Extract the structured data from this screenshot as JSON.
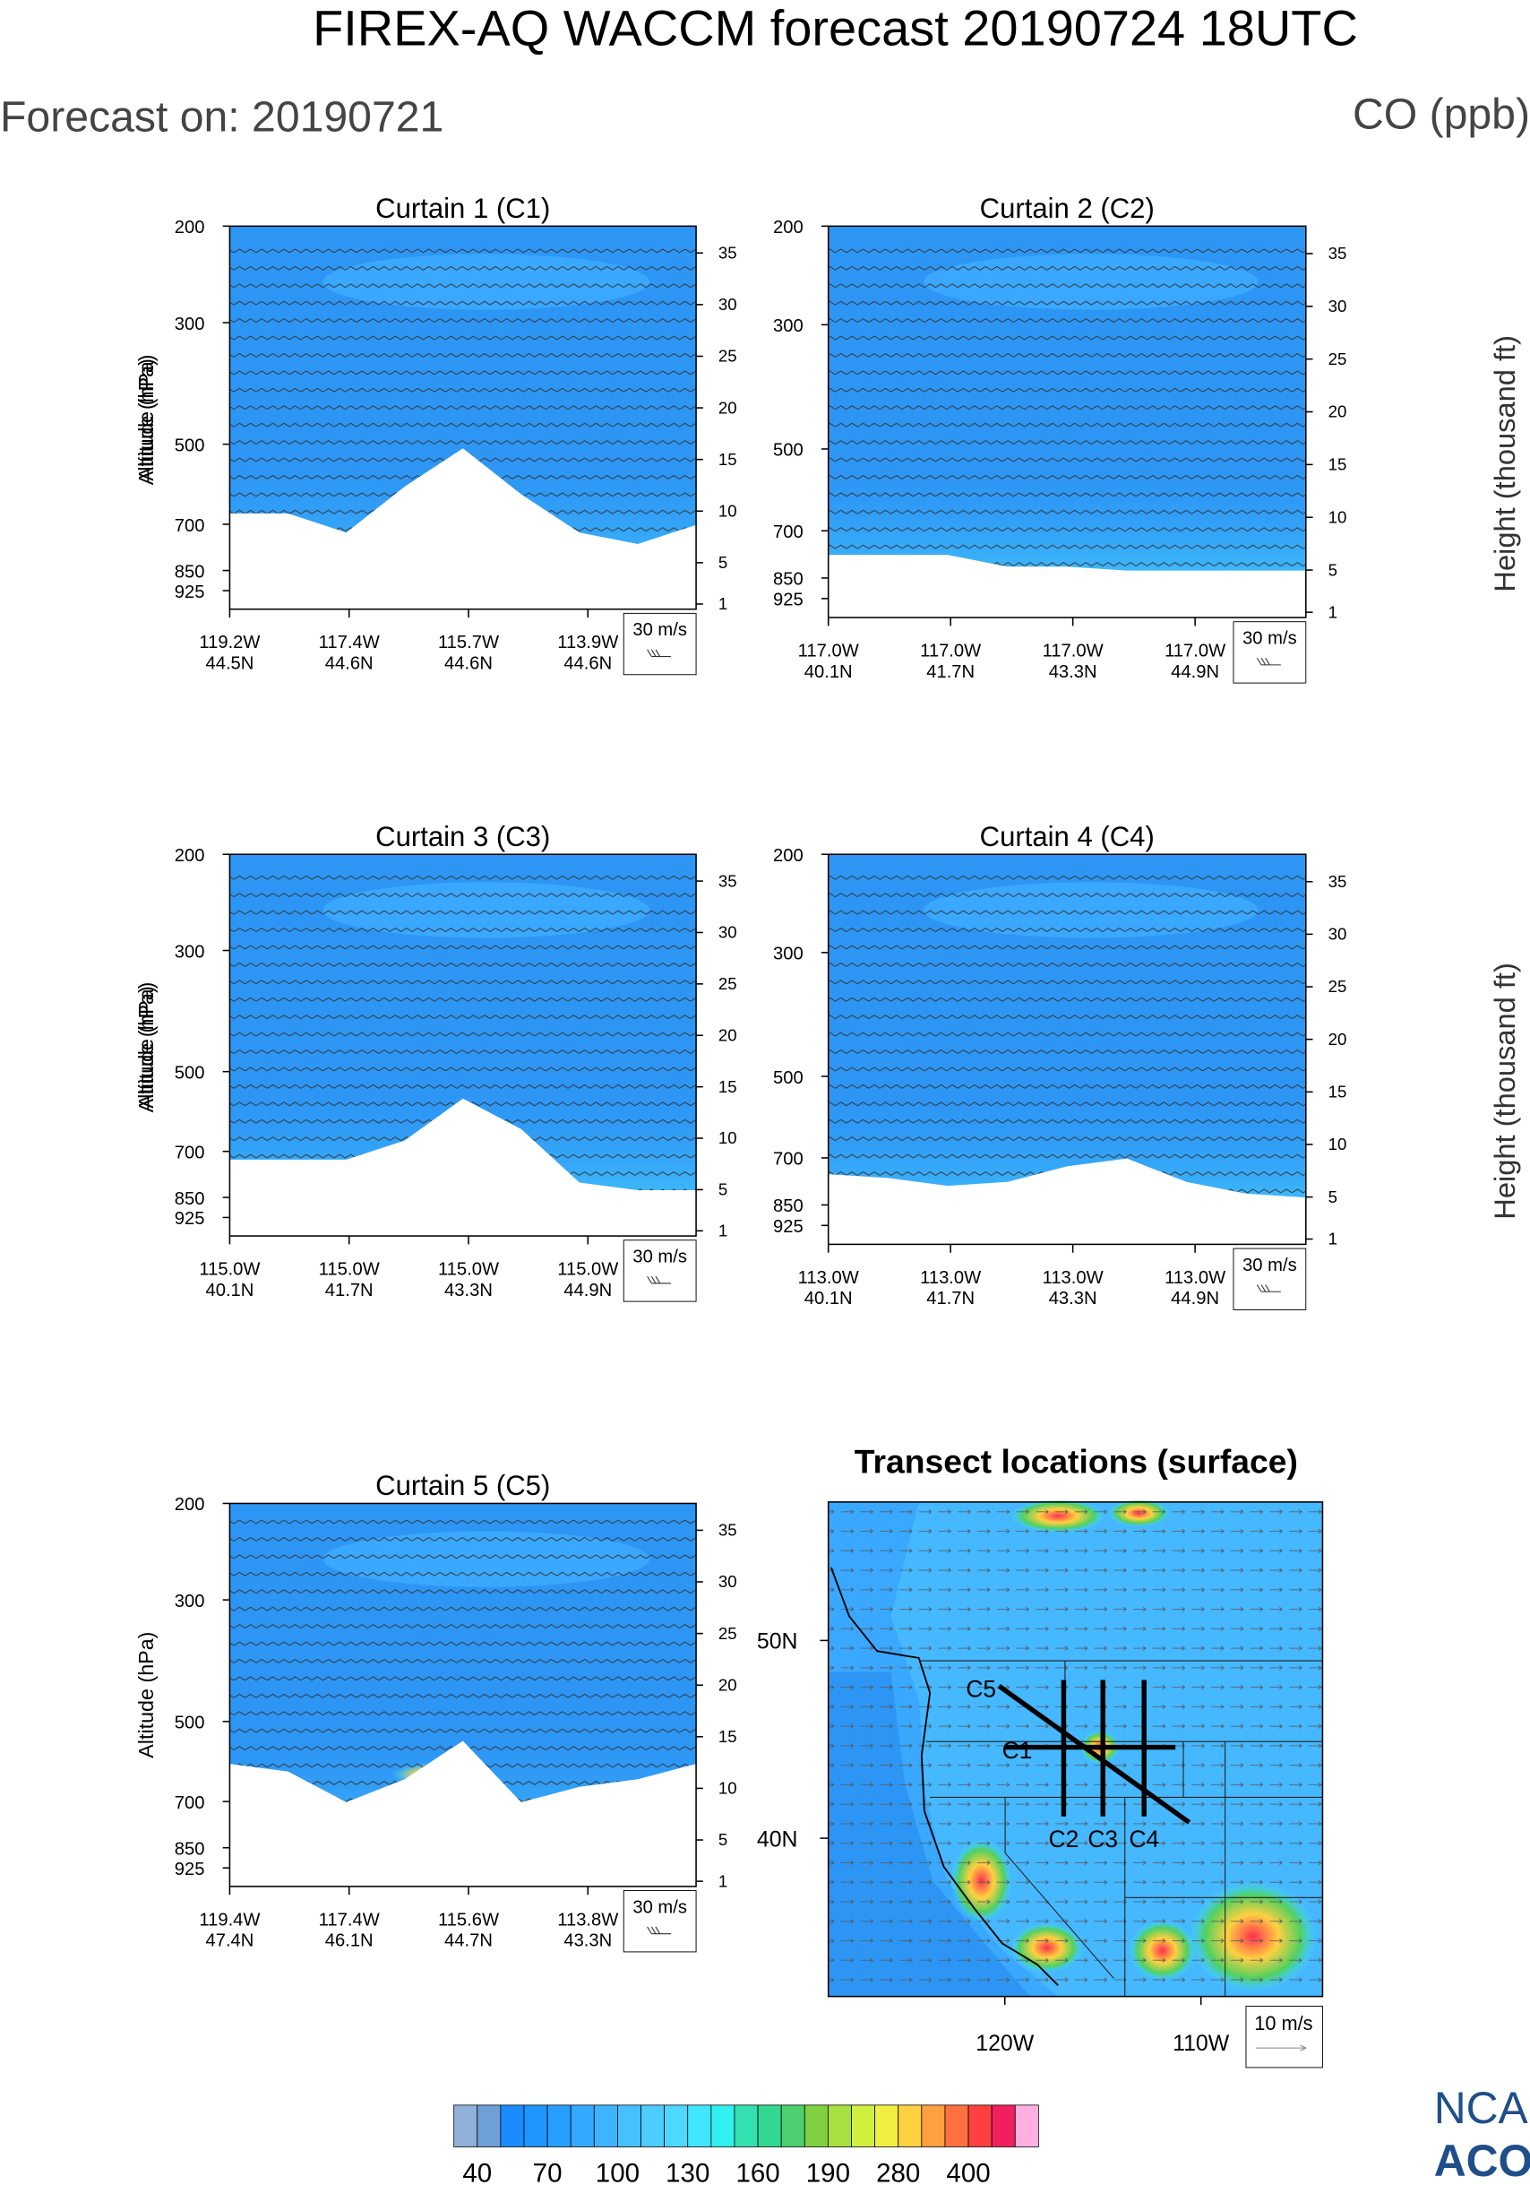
{
  "title": "FIREX-AQ WACCM forecast 20190724 18UTC",
  "subtitle": "Forecast on: 20190721",
  "units": "CO (ppb)",
  "axes": {
    "ylabel": "Altitude (hPa)",
    "y2label": "Height (thousand ft)",
    "log": true,
    "ylim": [
      200,
      1000
    ],
    "yticks": [
      200,
      300,
      500,
      700,
      850,
      925
    ],
    "y2lim": [
      0.5,
      37.6
    ],
    "y2ticks": [
      1,
      5,
      10,
      15,
      20,
      25,
      30,
      35
    ]
  },
  "panels": [
    {
      "title": "Curtain 1 (C1)",
      "ref_vector": "30 m/s",
      "xlabels": [
        {
          "lon": "119.2W",
          "lat": "44.5N"
        },
        {
          "lon": "117.4W",
          "lat": "44.6N"
        },
        {
          "lon": "115.7W",
          "lat": "44.6N"
        },
        {
          "lon": "113.9W",
          "lat": "44.6N"
        }
      ]
    },
    {
      "title": "Curtain 2 (C2)",
      "ref_vector": "30 m/s",
      "xlabels": [
        {
          "lon": "117.0W",
          "lat": "40.1N"
        },
        {
          "lon": "117.0W",
          "lat": "41.7N"
        },
        {
          "lon": "117.0W",
          "lat": "43.3N"
        },
        {
          "lon": "117.0W",
          "lat": "44.9N"
        }
      ]
    },
    {
      "title": "Curtain 3 (C3)",
      "ref_vector": "30 m/s",
      "xlabels": [
        {
          "lon": "115.0W",
          "lat": "40.1N"
        },
        {
          "lon": "115.0W",
          "lat": "41.7N"
        },
        {
          "lon": "115.0W",
          "lat": "43.3N"
        },
        {
          "lon": "115.0W",
          "lat": "44.9N"
        }
      ]
    },
    {
      "title": "Curtain 4 (C4)",
      "ref_vector": "30 m/s",
      "xlabels": [
        {
          "lon": "113.0W",
          "lat": "40.1N"
        },
        {
          "lon": "113.0W",
          "lat": "41.7N"
        },
        {
          "lon": "113.0W",
          "lat": "43.3N"
        },
        {
          "lon": "113.0W",
          "lat": "44.9N"
        }
      ]
    },
    {
      "title": "Curtain 5 (C5)",
      "ref_vector": "30 m/s",
      "xlabels": [
        {
          "lon": "119.4W",
          "lat": "47.4N"
        },
        {
          "lon": "117.4W",
          "lat": "46.1N"
        },
        {
          "lon": "115.6W",
          "lat": "44.7N"
        },
        {
          "lon": "113.8W",
          "lat": "43.3N"
        }
      ]
    }
  ],
  "map": {
    "title": "Transect locations (surface)",
    "ref_vector": "10 m/s",
    "xlim": [
      -129,
      -103.8
    ],
    "ylim": [
      32,
      57
    ],
    "xticks": [
      {
        "value": -120,
        "label": "120W"
      },
      {
        "value": -110,
        "label": "110W"
      }
    ],
    "yticks": [
      {
        "value": 50,
        "label": "50N"
      },
      {
        "value": 40,
        "label": "40N"
      }
    ],
    "transects": [
      {
        "name": "C1",
        "start": [
          -120,
          44.6
        ],
        "end": [
          -111.3,
          44.6
        ]
      },
      {
        "name": "C2",
        "start": [
          -117,
          48
        ],
        "end": [
          -117,
          41.1
        ]
      },
      {
        "name": "C3",
        "start": [
          -115,
          48
        ],
        "end": [
          -115,
          41.1
        ]
      },
      {
        "name": "C4",
        "start": [
          -112.9,
          48
        ],
        "end": [
          -112.9,
          41.1
        ]
      },
      {
        "name": "C5",
        "start": [
          -120.3,
          47.7
        ],
        "end": [
          -110.6,
          40.8
        ]
      }
    ]
  },
  "colorbar": {
    "labels": [
      40,
      70,
      100,
      130,
      160,
      190,
      280,
      400
    ],
    "colors": [
      "#8fb0d8",
      "#6f9fd8",
      "#1a8cff",
      "#1e96ff",
      "#26a0ff",
      "#33aaff",
      "#3db4ff",
      "#47c0ff",
      "#4dccff",
      "#4dd8ff",
      "#40e6ff",
      "#33f0f0",
      "#33e0b0",
      "#33d890",
      "#4cd070",
      "#80d040",
      "#a8e040",
      "#d0f040",
      "#f0f040",
      "#ffd040",
      "#ffa040",
      "#ff7040",
      "#ff4040",
      "#f02060",
      "#ffb0e0"
    ]
  },
  "logo": [
    "NCAR",
    "ACOM"
  ]
}
